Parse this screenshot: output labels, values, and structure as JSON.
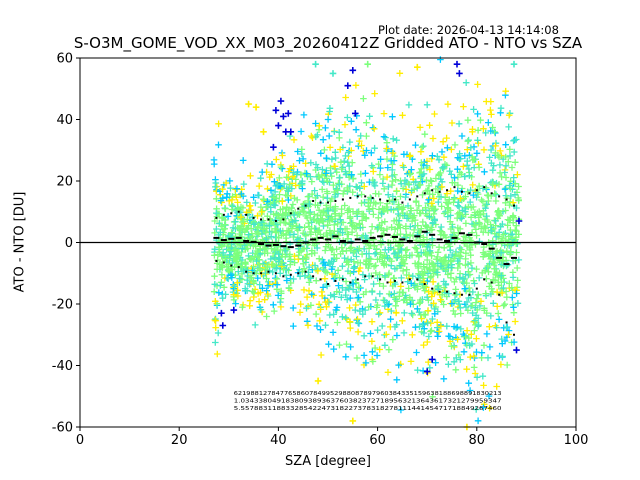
{
  "plot_date": "Plot date: 2026-04-13 14:14:08",
  "chart_data": {
    "type": "scatter",
    "title": "S-O3M_GOME_VOD_XX_M03_20260412Z Gridded ATO - NTO vs SZA",
    "xlabel": "SZA [degree]",
    "ylabel": "ATO - NTO [DU]",
    "xlim": [
      0,
      100
    ],
    "ylim": [
      -60,
      60
    ],
    "xticks": [
      0,
      20,
      40,
      60,
      80,
      100
    ],
    "yticks": [
      -60,
      -40,
      -20,
      0,
      20,
      40,
      60
    ],
    "grid": false,
    "marker": "+",
    "zero_line": 0,
    "point_colors": [
      "#0000d8",
      "#00c8ff",
      "#44e8c8",
      "#7cff7c",
      "#ffee00"
    ],
    "sza_range": [
      27,
      88.5
    ],
    "cloud_envelope": [
      {
        "sza": 28,
        "lo": -22,
        "hi": 24
      },
      {
        "sza": 35,
        "lo": -28,
        "hi": 26
      },
      {
        "sza": 42,
        "lo": -28,
        "hi": 36
      },
      {
        "sza": 48,
        "lo": -38,
        "hi": 50
      },
      {
        "sza": 55,
        "lo": -44,
        "hi": 54
      },
      {
        "sza": 62,
        "lo": -46,
        "hi": 50
      },
      {
        "sza": 68,
        "lo": -48,
        "hi": 48
      },
      {
        "sza": 74,
        "lo": -52,
        "hi": 52
      },
      {
        "sza": 80,
        "lo": -58,
        "hi": 58
      },
      {
        "sza": 86,
        "lo": -56,
        "hi": 58
      },
      {
        "sza": 88.5,
        "lo": -40,
        "hi": 40
      }
    ],
    "outlier_points": [
      {
        "x": 28.5,
        "y": -23,
        "c": 0
      },
      {
        "x": 28.8,
        "y": -27,
        "c": 0
      },
      {
        "x": 31,
        "y": -22,
        "c": 0
      },
      {
        "x": 39,
        "y": 31,
        "c": 0
      },
      {
        "x": 39.5,
        "y": 43,
        "c": 0
      },
      {
        "x": 40,
        "y": 38,
        "c": 0
      },
      {
        "x": 40.5,
        "y": 46,
        "c": 0
      },
      {
        "x": 41,
        "y": 41,
        "c": 0
      },
      {
        "x": 41.5,
        "y": 36,
        "c": 0
      },
      {
        "x": 42.5,
        "y": 36,
        "c": 0
      },
      {
        "x": 42,
        "y": 42,
        "c": 0
      },
      {
        "x": 55,
        "y": 56,
        "c": 0
      },
      {
        "x": 54,
        "y": 51,
        "c": 0
      },
      {
        "x": 55.5,
        "y": 42,
        "c": 0
      },
      {
        "x": 76,
        "y": 58,
        "c": 0
      },
      {
        "x": 76.5,
        "y": 55,
        "c": 0
      },
      {
        "x": 88.5,
        "y": 7,
        "c": 0
      },
      {
        "x": 88,
        "y": -35,
        "c": 0
      },
      {
        "x": 70,
        "y": -42,
        "c": 0
      },
      {
        "x": 71,
        "y": -38,
        "c": 0
      },
      {
        "x": 34,
        "y": 45,
        "c": 4
      },
      {
        "x": 35.5,
        "y": 44,
        "c": 4
      },
      {
        "x": 37,
        "y": 36,
        "c": 4
      },
      {
        "x": 47.5,
        "y": 58,
        "c": 2
      },
      {
        "x": 51,
        "y": 55,
        "c": 2
      },
      {
        "x": 58,
        "y": 58,
        "c": 3
      },
      {
        "x": 68,
        "y": 57,
        "c": 4
      },
      {
        "x": 87.5,
        "y": 58,
        "c": 2
      },
      {
        "x": 55,
        "y": -58,
        "c": 4
      },
      {
        "x": 48,
        "y": -45,
        "c": 4
      },
      {
        "x": 78,
        "y": -60,
        "c": 4
      }
    ],
    "median_series": {
      "name": "median",
      "x": [
        27.5,
        29,
        30.5,
        32,
        33.5,
        35,
        36.5,
        38,
        39.5,
        41,
        42.5,
        44,
        45.5,
        47,
        48.5,
        50,
        51.5,
        53,
        54.5,
        56,
        57.5,
        59,
        60.5,
        62,
        63.5,
        65,
        66.5,
        68,
        69.5,
        71,
        72.5,
        74,
        75.5,
        77,
        78.5,
        80,
        81.5,
        83,
        84.5,
        86,
        87.5
      ],
      "y": [
        1.5,
        0.8,
        1.2,
        1.5,
        0.5,
        0.2,
        -0.5,
        -1,
        -0.8,
        -1.2,
        -1.5,
        -1,
        0,
        1,
        1.5,
        1,
        2,
        0.5,
        0,
        1,
        0.5,
        1.5,
        2,
        2.5,
        1.8,
        1,
        0.5,
        2,
        3.5,
        2.5,
        1,
        0.5,
        1.5,
        3,
        2.5,
        0,
        -0.5,
        -2,
        -5,
        -7,
        -5
      ]
    },
    "upper_series": {
      "name": "upper",
      "x": [
        27.5,
        29,
        30.5,
        32,
        33.5,
        35,
        36.5,
        38,
        39.5,
        41,
        42.5,
        44,
        45.5,
        47,
        48.5,
        50,
        51.5,
        53,
        54.5,
        56,
        57.5,
        59,
        60.5,
        62,
        63.5,
        65,
        66.5,
        68,
        69.5,
        71,
        72.5,
        74,
        75.5,
        77,
        78.5,
        80,
        81.5,
        83,
        84.5,
        86,
        87.5
      ],
      "y": [
        8,
        9,
        9.5,
        10,
        9,
        8,
        7.5,
        7.5,
        7,
        7.5,
        9.5,
        11,
        12,
        13.5,
        13,
        13,
        13.5,
        14,
        14.5,
        15,
        15,
        14.5,
        14,
        13.5,
        14,
        13,
        14,
        15,
        16,
        17,
        16.5,
        17,
        18,
        16.5,
        16,
        17,
        18,
        16,
        15,
        14,
        12
      ]
    },
    "lower_series": {
      "name": "lower",
      "x": [
        27.5,
        29,
        30.5,
        32,
        33.5,
        35,
        36.5,
        38,
        39.5,
        41,
        42.5,
        44,
        45.5,
        47,
        48.5,
        50,
        51.5,
        53,
        54.5,
        56,
        57.5,
        59,
        60.5,
        62,
        63.5,
        65,
        66.5,
        68,
        69.5,
        71,
        72.5,
        74,
        75.5,
        77,
        78.5,
        80,
        81.5,
        83,
        84.5,
        86,
        87.5
      ],
      "y": [
        -6,
        -6.5,
        -7.5,
        -8,
        -9.5,
        -10,
        -10,
        -9.5,
        -10,
        -11,
        -10.5,
        -10,
        -9.5,
        -11,
        -12,
        -13.5,
        -12.5,
        -12,
        -13,
        -12,
        -11,
        -11,
        -12,
        -13,
        -12.5,
        -13,
        -12,
        -12,
        -13.5,
        -15,
        -16,
        -16,
        -16.5,
        -17,
        -17,
        -15,
        -12,
        -13,
        -17,
        -26,
        -30
      ]
    },
    "count_rows": [
      "6219881278477658607849952988087897960384335159638188698891830213",
      "1.0343380491838093893637603823727189563213643617321279959347",
      "5.5578831188332854224731822737831827811144145471718849267460"
    ],
    "count_rows_sza": [
      31,
      85
    ]
  }
}
